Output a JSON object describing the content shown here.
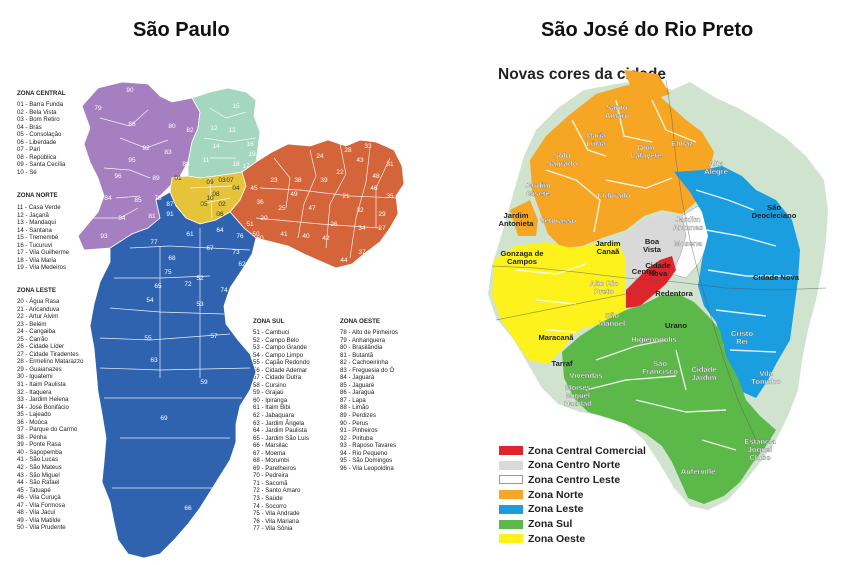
{
  "left": {
    "title": "São Paulo",
    "zones": {
      "central": {
        "title": "ZONA CENTRAL",
        "items": [
          "01 - Barra Funda",
          "02 - Bela Vista",
          "03 - Bom Retiro",
          "04 - Brás",
          "05 - Consolação",
          "06 - Liberdade",
          "07 - Pari",
          "08 - República",
          "09 - Santa Cecília",
          "10 - Sé"
        ]
      },
      "norte": {
        "title": "ZONA NORTE",
        "items": [
          "11 - Casa Verde",
          "12 - Jaçanã",
          "13 - Mandaqui",
          "14 - Santana",
          "15 - Tremembé",
          "16 - Tucuruvi",
          "17 - Vila Guilherme",
          "18 - Vila Maria",
          "19 - Vila Medeiros"
        ]
      },
      "leste": {
        "title": "ZONA LESTE",
        "items": [
          "20 - Água Rasa",
          "21 - Aricanduva",
          "22 - Artur Alvim",
          "23 - Belém",
          "24 - Cangaiba",
          "25 - Carrão",
          "26 - Cidade Líder",
          "27 - Cidade Tiradentes",
          "28 - Ermelino Matarazzo",
          "29 - Guaianazes",
          "30 - Iguatemi",
          "31 - Itaim Paulista",
          "32 - Itaquera",
          "33 - Jardim Helena",
          "34 - José Bonifácio",
          "35 - Lajeado",
          "36 - Moóca",
          "37 - Parque do Carmo",
          "38 - Penha",
          "39 - Ponte Rasa",
          "40 - Sapopemba",
          "41 - São Lucas",
          "42 - São Mateus",
          "43 - São Miguel",
          "44 - São Rafael",
          "45 - Tatuapé",
          "46 - Vila Curuçá",
          "47 - Vila Formosa",
          "48 - Vila Jacuí",
          "49 - Vila Matilde",
          "50 - Vila Prudente"
        ]
      },
      "sul": {
        "title": "ZONA SUL",
        "items": [
          "51 - Cambuci",
          "52 - Campo Belo",
          "53 - Campo Grande",
          "54 - Campo Limpo",
          "55 - Capão Redondo",
          "56 - Cidade Ademar",
          "57 - Cidade Dutra",
          "58 - Cursino",
          "59 - Grajaú",
          "60 - Ipiranga",
          "61 - Itaim Bibi",
          "62 - Jabaquara",
          "63 - Jardim Ângela",
          "64 - Jardim Paulista",
          "65 - Jardim São Luis",
          "66 - Marsilac",
          "67 - Moema",
          "68 - Morumbi",
          "69 - Parelheiros",
          "70 - Pedreira",
          "71 - Sacomã",
          "72 - Santo Amaro",
          "73 - Saúde",
          "74 - Socorro",
          "75 - Vila Andrade",
          "76 - Vila Mariana",
          "77 - Vila Sônia"
        ]
      },
      "oeste": {
        "title": "ZONA OESTE",
        "items": [
          "78 - Alto de Pinheiros",
          "79 - Anhanguera",
          "80 - Brasilândia",
          "81 - Butantã",
          "82 - Cachoeirinha",
          "83 - Freguesia do Ó",
          "84 - Jaguará",
          "85 - Jaguaré",
          "86 - Jaraguá",
          "87 - Lapa",
          "88 - Limão",
          "89 - Perdizes",
          "90 - Perus",
          "91 - Pinheiros",
          "92 - Pirituba",
          "93 - Raposo Tavares",
          "94 - Rio Pequeno",
          "95 - São Domingos",
          "96 - Vila Leopoldina"
        ]
      }
    },
    "colors": {
      "central": "#e6c43a",
      "norte": "#a5d6bf",
      "leste": "#d4643a",
      "sul": "#2f63b0",
      "oeste": "#a57fbf"
    },
    "map_numbers": {
      "central": [
        "01",
        "02",
        "03",
        "04",
        "05",
        "06",
        "07",
        "08",
        "09",
        "10"
      ],
      "norte": [
        "11",
        "12",
        "13",
        "14",
        "15",
        "16",
        "17",
        "18",
        "19"
      ],
      "leste": [
        "20",
        "21",
        "22",
        "23",
        "24",
        "25",
        "26",
        "27",
        "28",
        "29",
        "30",
        "31",
        "32",
        "33",
        "34",
        "35",
        "36",
        "37",
        "38",
        "39",
        "40",
        "41",
        "42",
        "43",
        "44",
        "45",
        "46",
        "47",
        "48",
        "49",
        "50"
      ],
      "sul": [
        "51",
        "52",
        "53",
        "54",
        "55",
        "56",
        "57",
        "58",
        "59",
        "60",
        "61",
        "62",
        "63",
        "64",
        "65",
        "66",
        "67",
        "68",
        "69",
        "70",
        "71",
        "72",
        "73",
        "74",
        "75",
        "76",
        "77"
      ],
      "oeste": [
        "78",
        "79",
        "80",
        "81",
        "82",
        "83",
        "84",
        "85",
        "86",
        "87",
        "88",
        "89",
        "90",
        "91",
        "92",
        "93",
        "94",
        "95",
        "96"
      ]
    }
  },
  "right": {
    "title": "São José do Rio Preto",
    "subtitle": "Novas cores da cidade",
    "colors": {
      "comercial": "#e0242b",
      "centro_norte": "#d9d9d9",
      "centro_leste": "#ffffff",
      "norte": "#f6a623",
      "leste": "#1b9ee0",
      "sul": "#5cb849",
      "oeste": "#fdf21b",
      "background": "#cfe3cf"
    },
    "legend": [
      {
        "label": "Zona Central Comercial",
        "color": "#e0242b"
      },
      {
        "label": "Zona Centro Norte",
        "color": "#d9d9d9"
      },
      {
        "label": "Zona Centro Leste",
        "color": "#ffffff"
      },
      {
        "label": "Zona Norte",
        "color": "#f6a623"
      },
      {
        "label": "Zona Leste",
        "color": "#1b9ee0"
      },
      {
        "label": "Zona Sul",
        "color": "#5cb849"
      },
      {
        "label": "Zona Oeste",
        "color": "#fdf21b"
      }
    ],
    "places": {
      "santo_amaro": "Santo\nAmaro",
      "maria_lucia": "Maria\nLúcia",
      "dom_lafayete": "Dom\nLafayete",
      "elmaz": "Elmaz",
      "solo_sagrado": "Solo\nSagrado",
      "jardim_gisete": "Jardim\nGisete",
      "eldorado": "Eldorado",
      "alto_alegre": "Alto\nAlegre",
      "jardim_antunes": "Jardim\nAntunes",
      "jardim_antonieta": "Jardim\nAntonieta",
      "vetorasso": "Vetorasso",
      "boa_vista": "Boa\nVista",
      "jardim_canaa": "Jardim\nCanaã",
      "sao_deocleciano": "São\nDeocleciano",
      "mosena": "Mosena",
      "gonzaga_de_campos": "Gonzaga de\nCampos",
      "centro": "Centro",
      "cidade_nova": "Cidade\nNova",
      "alto_rio_preto": "Alto Rio\nPreto",
      "maracana": "Maracanã",
      "redentora": "Redentora",
      "sao_manoel": "São\nManoel",
      "urano": "Urano",
      "cristo_rei": "Cristo\nRei",
      "tarraf": "Tarraf",
      "higienopolis": "Higienópolis",
      "vivendas": "Vivendas",
      "sao_francisco": "São\nFrancisco",
      "cidade_jardim": "Cidade\nJardim",
      "vila_toninho": "Vila\nToninho",
      "moises_miguel_haddad": "Moises\nMiguel\nHaddad",
      "estancia_joquei_clube": "Estância\nJóquei\nClube",
      "auferville": "Auferville",
      "cidade_nova_2": "Cidade Nova"
    }
  }
}
